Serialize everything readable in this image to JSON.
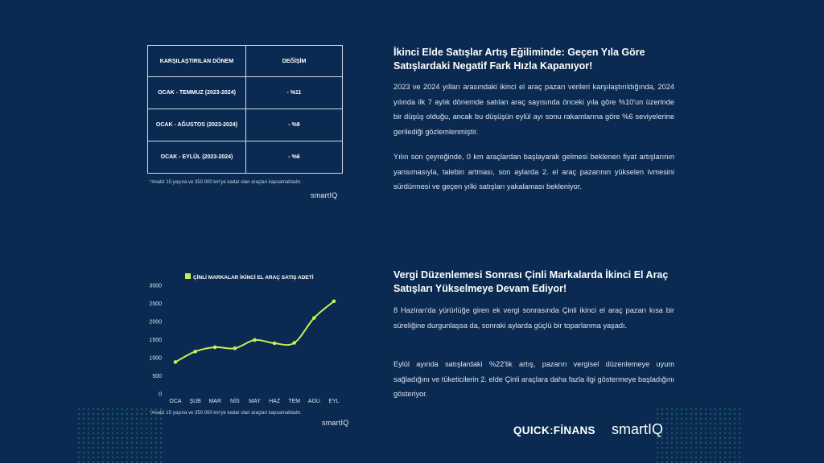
{
  "table": {
    "headers": [
      "KARŞILAŞTIRILAN DÖNEM",
      "DEĞİŞİM"
    ],
    "rows": [
      {
        "period": "OCAK - TEMMUZ (2023-2024)",
        "change": "- %11"
      },
      {
        "period": "OCAK - AĞUSTOS (2023-2024)",
        "change": "- %9"
      },
      {
        "period": "OCAK - EYLÜL (2023-2024)",
        "change": "- %6"
      }
    ],
    "note": "*Analiz 15 yaşına ve 350.000 km'ye kadar olan araçları kapsamaktadır.",
    "logo": "smartIQ"
  },
  "section1": {
    "heading": "İkinci Elde Satışlar Artış Eğiliminde: Geçen Yıla Göre Satışlardaki Negatif Fark Hızla Kapanıyor!",
    "p1": "2023 ve 2024 yılları arasındaki ikinci el araç pazarı verileri karşılaştırıldığında, 2024 yılında ilk 7 aylık dönemde satılan araç sayısında önceki yıla göre %10'un üzerinde bir düşüş olduğu, ancak bu düşüşün eylül ayı sonu rakamlarına göre %6 seviyelerine gerilediği gözlemlenmiştir.",
    "p2": "Yılın son çeyreğinde, 0 km araçlardan başlayarak gelmesi beklenen fiyat artışlarının yansımasıyla, talebin artması, son aylarda 2. el araç pazarının yükselen ivmesini sürdürmesi ve geçen yılki satışları yakalaması bekleniyor."
  },
  "section2": {
    "heading": "Vergi Düzenlemesi Sonrası Çinli Markalarda İkinci El Araç Satışları Yükselmeye Devam Ediyor!",
    "p1": "8 Haziran'da yürürlüğe giren ek vergi sonrasında Çinli ikinci el araç pazarı kısa bir süreliğine durgunlaşsa da, sonraki aylarda güçlü bir toparlanma yaşadı.",
    "p2": "Eylül ayında satışlardaki %22'lik artış, pazarın vergisel düzenlemeye uyum sağladığını ve tüketicilerin 2. elde Çinli araçlara daha fazla ilgi göstermeye başladığını gösteriyor."
  },
  "chart_note": "*Analiz 15 yaşına ve 350.000 km'ye kadar olan araçları kapsamaktadır.",
  "chart_logo": "smartIQ",
  "brands": {
    "quick_a": "QUICK",
    "quick_sep": ":",
    "quick_b": "FİNANS",
    "smart": "smartIQ"
  },
  "colors": {
    "background": "#0b2a52",
    "accent": "#c6ef5a"
  },
  "chart_data": {
    "type": "line",
    "categories": [
      "OCA",
      "ŞUB",
      "MAR",
      "NİS",
      "MAY",
      "HAZ",
      "TEM",
      "AGU",
      "EYL"
    ],
    "series": [
      {
        "name": "ÇİNLİ MARKALAR İKİNCİ EL ARAÇ SATIŞ ADETİ",
        "values": [
          880,
          1170,
          1290,
          1260,
          1490,
          1400,
          1410,
          2100,
          2560
        ]
      }
    ],
    "yticks": [
      0,
      500,
      1000,
      1500,
      2000,
      2500,
      3000
    ],
    "ylim": [
      0,
      3000
    ],
    "grid": false,
    "legend": "top",
    "line_color": "#c6ef5a"
  }
}
